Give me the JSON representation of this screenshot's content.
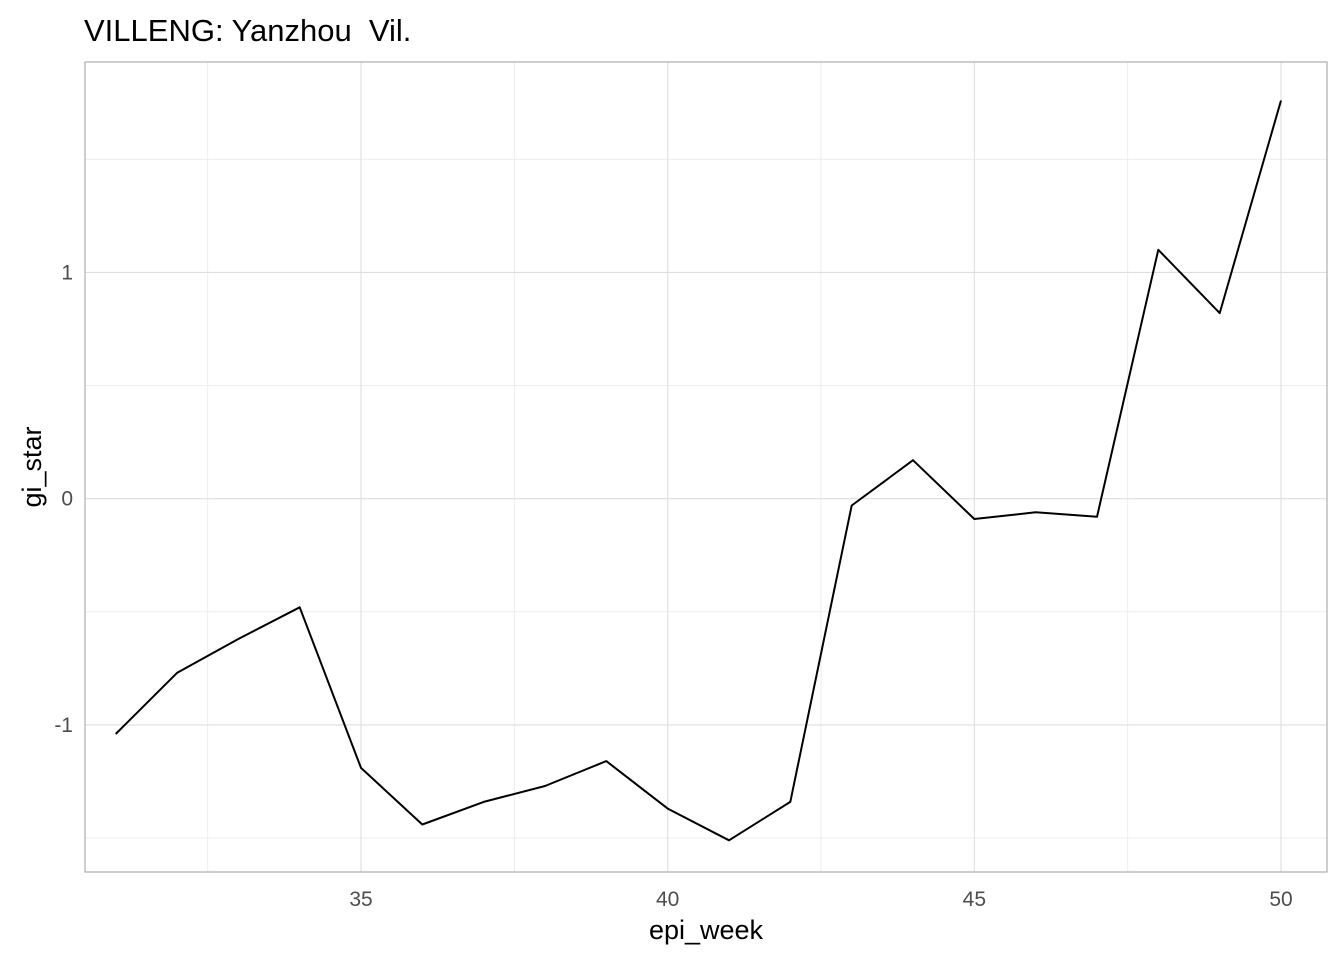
{
  "chart_data": {
    "type": "line",
    "title": "VILLENG: Yanzhou  Vil.",
    "xlabel": "epi_week",
    "ylabel": "gi_star",
    "x": [
      31,
      32,
      33,
      34,
      35,
      36,
      37,
      38,
      39,
      40,
      41,
      42,
      43,
      44,
      45,
      46,
      47,
      48,
      49,
      50
    ],
    "y": [
      -1.04,
      -0.77,
      -0.62,
      -0.48,
      -1.19,
      -1.44,
      -1.34,
      -1.27,
      -1.16,
      -1.37,
      -1.51,
      -1.34,
      -0.03,
      0.17,
      -0.09,
      -0.06,
      -0.08,
      1.1,
      0.82,
      1.76
    ],
    "xlim": [
      30.5,
      50.75
    ],
    "ylim": [
      -1.65,
      1.93
    ],
    "x_ticks": [
      35,
      40,
      45,
      50
    ],
    "y_ticks": [
      -1,
      0,
      1
    ],
    "x_tick_labels": [
      "35",
      "40",
      "45",
      "50"
    ],
    "y_tick_labels": [
      "-1",
      "0",
      "1"
    ],
    "grid": true,
    "line_color": "#000000"
  }
}
